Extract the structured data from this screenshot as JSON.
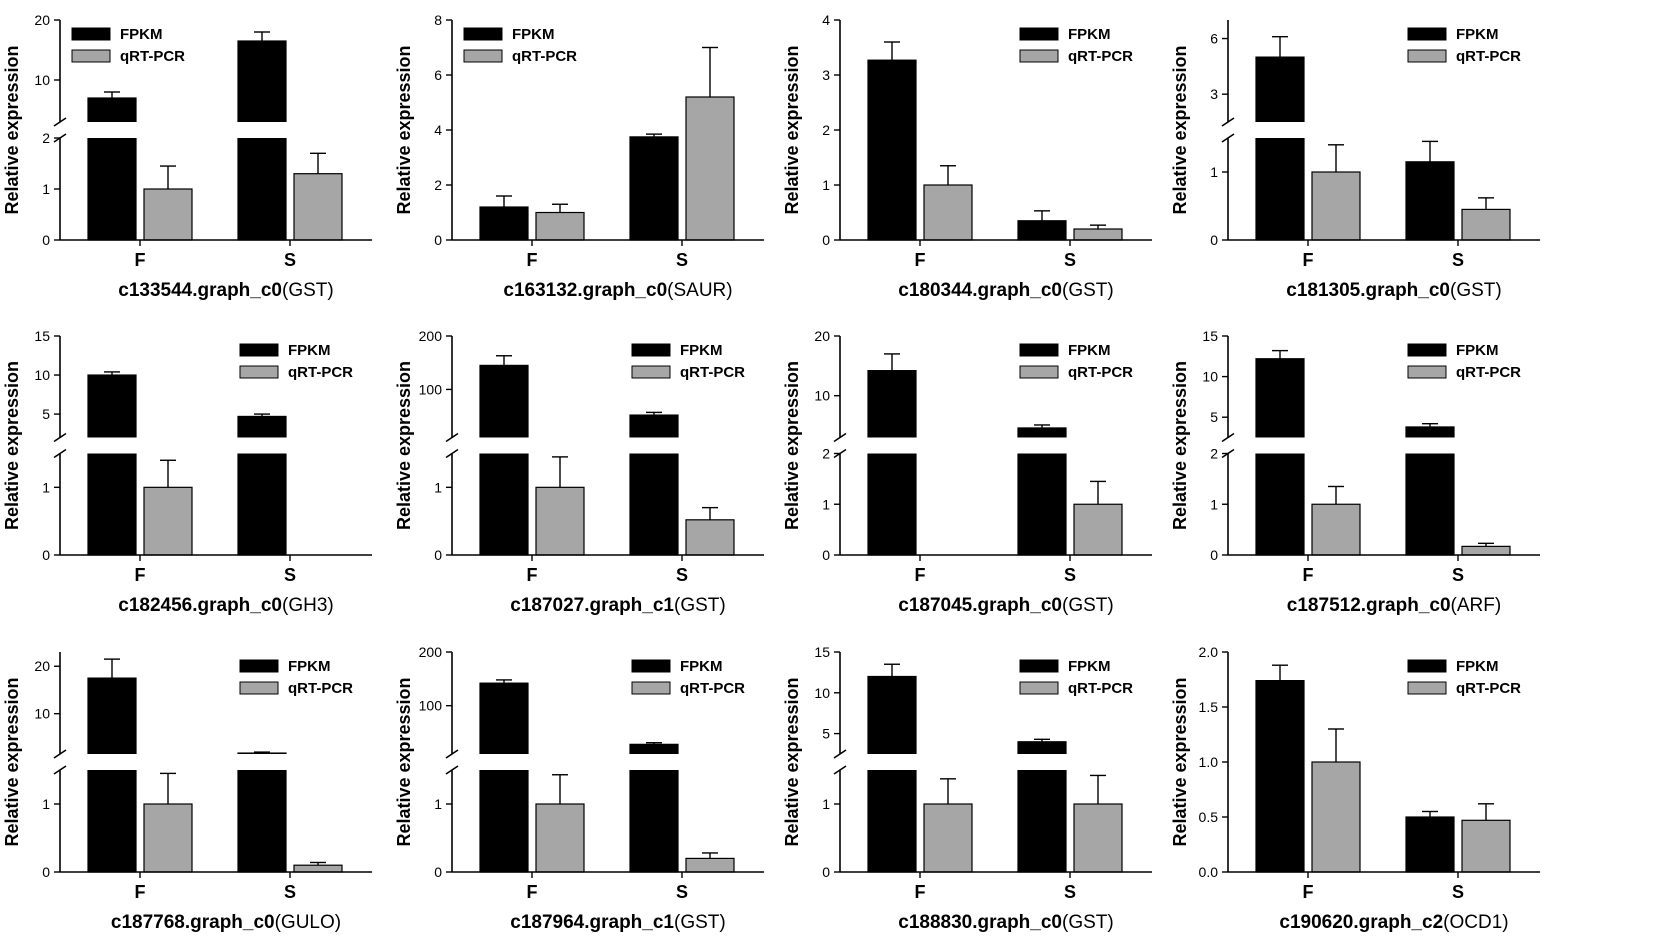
{
  "legend": {
    "fpkm": "FPKM",
    "qrt": "qRT-PCR"
  },
  "colors": {
    "fpkm": "#000000",
    "qrt": "#a6a6a6",
    "axis": "#000000"
  },
  "chart_data": [
    {
      "type": "bar",
      "title_id": "c133544.graph_c0",
      "title_gene": "(GST)",
      "ylabel": "Relative expression",
      "categories": [
        "F",
        "S"
      ],
      "axis": {
        "broken": true,
        "lower": {
          "ylim": [
            0,
            2
          ],
          "ticks": [
            "0",
            "1",
            "2"
          ]
        },
        "upper": {
          "ylim": [
            3,
            20
          ],
          "ticks": [
            "10",
            "20"
          ]
        }
      },
      "series": [
        {
          "name": "FPKM",
          "values": [
            7,
            16.5
          ],
          "errors": [
            1,
            1.5
          ]
        },
        {
          "name": "qRT-PCR",
          "values": [
            1,
            1.3
          ],
          "errors": [
            0.45,
            0.4
          ]
        }
      ]
    },
    {
      "type": "bar",
      "title_id": "c163132.graph_c0",
      "title_gene": "(SAUR)",
      "ylabel": "Relative expression",
      "categories": [
        "F",
        "S"
      ],
      "axis": {
        "broken": false,
        "ylim": [
          0,
          8
        ],
        "ticks": [
          "0",
          "2",
          "4",
          "6",
          "8"
        ]
      },
      "series": [
        {
          "name": "FPKM",
          "values": [
            1.2,
            3.75
          ],
          "errors": [
            0.4,
            0.1
          ]
        },
        {
          "name": "qRT-PCR",
          "values": [
            1,
            5.2
          ],
          "errors": [
            0.3,
            1.8
          ]
        }
      ]
    },
    {
      "type": "bar",
      "title_id": "c180344.graph_c0",
      "title_gene": "(GST)",
      "ylabel": "Relative expression",
      "categories": [
        "F",
        "S"
      ],
      "axis": {
        "broken": false,
        "ylim": [
          0,
          4
        ],
        "ticks": [
          "0",
          "1",
          "2",
          "3",
          "4"
        ]
      },
      "series": [
        {
          "name": "FPKM",
          "values": [
            3.27,
            0.35
          ],
          "errors": [
            0.33,
            0.18
          ]
        },
        {
          "name": "qRT-PCR",
          "values": [
            1,
            0.2
          ],
          "errors": [
            0.35,
            0.07
          ]
        }
      ]
    },
    {
      "type": "bar",
      "title_id": "c181305.graph_c0",
      "title_gene": "(GST)",
      "ylabel": "Relative expression",
      "categories": [
        "F",
        "S"
      ],
      "axis": {
        "broken": true,
        "lower": {
          "ylim": [
            0,
            1.5
          ],
          "ticks": [
            "0",
            "1"
          ]
        },
        "upper": {
          "ylim": [
            1.5,
            7
          ],
          "ticks": [
            "3",
            "6"
          ]
        }
      },
      "series": [
        {
          "name": "FPKM",
          "values": [
            5,
            1.15
          ],
          "errors": [
            1.1,
            0.3
          ]
        },
        {
          "name": "qRT-PCR",
          "values": [
            1,
            0.45
          ],
          "errors": [
            0.4,
            0.17
          ]
        }
      ]
    },
    {
      "type": "bar",
      "title_id": "c182456.graph_c0",
      "title_gene": "(GH3)",
      "ylabel": "Relative expression",
      "categories": [
        "F",
        "S"
      ],
      "axis": {
        "broken": true,
        "lower": {
          "ylim": [
            0,
            1.5
          ],
          "ticks": [
            "0",
            "1"
          ]
        },
        "upper": {
          "ylim": [
            2,
            15
          ],
          "ticks": [
            "5",
            "10",
            "15"
          ]
        }
      },
      "series": [
        {
          "name": "FPKM",
          "values": [
            10,
            4.7
          ],
          "errors": [
            0.4,
            0.3
          ]
        },
        {
          "name": "qRT-PCR",
          "values": [
            1,
            0
          ],
          "errors": [
            0.4,
            0
          ]
        }
      ]
    },
    {
      "type": "bar",
      "title_id": "c187027.graph_c1",
      "title_gene": "(GST)",
      "ylabel": "Relative expression",
      "categories": [
        "F",
        "S"
      ],
      "axis": {
        "broken": true,
        "lower": {
          "ylim": [
            0,
            1.5
          ],
          "ticks": [
            "0",
            "1"
          ]
        },
        "upper": {
          "ylim": [
            10,
            200
          ],
          "ticks": [
            "100",
            "200"
          ]
        }
      },
      "series": [
        {
          "name": "FPKM",
          "values": [
            145,
            52
          ],
          "errors": [
            18,
            5
          ]
        },
        {
          "name": "qRT-PCR",
          "values": [
            1,
            0.52
          ],
          "errors": [
            0.45,
            0.18
          ]
        }
      ]
    },
    {
      "type": "bar",
      "title_id": "c187045.graph_c0",
      "title_gene": "(GST)",
      "ylabel": "Relative expression",
      "categories": [
        "F",
        "S"
      ],
      "axis": {
        "broken": true,
        "lower": {
          "ylim": [
            0,
            2
          ],
          "ticks": [
            "0",
            "1",
            "2"
          ]
        },
        "upper": {
          "ylim": [
            3,
            20
          ],
          "ticks": [
            "10",
            "20"
          ]
        }
      },
      "series": [
        {
          "name": "FPKM",
          "values": [
            14.2,
            4.6
          ],
          "errors": [
            2.8,
            0.5
          ]
        },
        {
          "name": "qRT-PCR",
          "values": [
            0,
            1
          ],
          "errors": [
            0,
            0.45
          ]
        }
      ]
    },
    {
      "type": "bar",
      "title_id": "c187512.graph_c0",
      "title_gene": "(ARF)",
      "ylabel": "Relative expression",
      "categories": [
        "F",
        "S"
      ],
      "axis": {
        "broken": true,
        "lower": {
          "ylim": [
            0,
            2
          ],
          "ticks": [
            "0",
            "1",
            "2"
          ]
        },
        "upper": {
          "ylim": [
            2.5,
            15
          ],
          "ticks": [
            "5",
            "10",
            "15"
          ]
        }
      },
      "series": [
        {
          "name": "FPKM",
          "values": [
            12.2,
            3.8
          ],
          "errors": [
            1,
            0.4
          ]
        },
        {
          "name": "qRT-PCR",
          "values": [
            1,
            0.17
          ],
          "errors": [
            0.35,
            0.06
          ]
        }
      ]
    },
    {
      "type": "bar",
      "title_id": "c187768.graph_c0",
      "title_gene": "(GULO)",
      "ylabel": "Relative expression",
      "categories": [
        "F",
        "S"
      ],
      "axis": {
        "broken": true,
        "lower": {
          "ylim": [
            0,
            1.5
          ],
          "ticks": [
            "0",
            "1"
          ]
        },
        "upper": {
          "ylim": [
            1.5,
            23
          ],
          "ticks": [
            "10",
            "20"
          ]
        }
      },
      "series": [
        {
          "name": "FPKM",
          "values": [
            17.5,
            1.7
          ],
          "errors": [
            4,
            0.2
          ]
        },
        {
          "name": "qRT-PCR",
          "values": [
            1,
            0.1
          ],
          "errors": [
            0.45,
            0.04
          ]
        }
      ]
    },
    {
      "type": "bar",
      "title_id": "c187964.graph_c1",
      "title_gene": "(GST)",
      "ylabel": "Relative expression",
      "categories": [
        "F",
        "S"
      ],
      "axis": {
        "broken": true,
        "lower": {
          "ylim": [
            0,
            1.5
          ],
          "ticks": [
            "0",
            "1"
          ]
        },
        "upper": {
          "ylim": [
            10,
            200
          ],
          "ticks": [
            "100",
            "200"
          ]
        }
      },
      "series": [
        {
          "name": "FPKM",
          "values": [
            142,
            28
          ],
          "errors": [
            6,
            3
          ]
        },
        {
          "name": "qRT-PCR",
          "values": [
            1,
            0.2
          ],
          "errors": [
            0.43,
            0.08
          ]
        }
      ]
    },
    {
      "type": "bar",
      "title_id": "c188830.graph_c0",
      "title_gene": "(GST)",
      "ylabel": "Relative expression",
      "categories": [
        "F",
        "S"
      ],
      "axis": {
        "broken": true,
        "lower": {
          "ylim": [
            0,
            1.5
          ],
          "ticks": [
            "0",
            "1"
          ]
        },
        "upper": {
          "ylim": [
            2.5,
            15
          ],
          "ticks": [
            "5",
            "10",
            "15"
          ]
        }
      },
      "series": [
        {
          "name": "FPKM",
          "values": [
            12,
            4
          ],
          "errors": [
            1.5,
            0.3
          ]
        },
        {
          "name": "qRT-PCR",
          "values": [
            1,
            1
          ],
          "errors": [
            0.37,
            0.42
          ]
        }
      ]
    },
    {
      "type": "bar",
      "title_id": "c190620.graph_c2",
      "title_gene": "(OCD1)",
      "ylabel": "Relative expression",
      "categories": [
        "F",
        "S"
      ],
      "axis": {
        "broken": false,
        "ylim": [
          0,
          2
        ],
        "ticks": [
          "0.0",
          "0.5",
          "1.0",
          "1.5",
          "2.0"
        ]
      },
      "series": [
        {
          "name": "FPKM",
          "values": [
            1.74,
            0.5
          ],
          "errors": [
            0.14,
            0.05
          ]
        },
        {
          "name": "qRT-PCR",
          "values": [
            1,
            0.47
          ],
          "errors": [
            0.3,
            0.15
          ]
        }
      ]
    }
  ]
}
